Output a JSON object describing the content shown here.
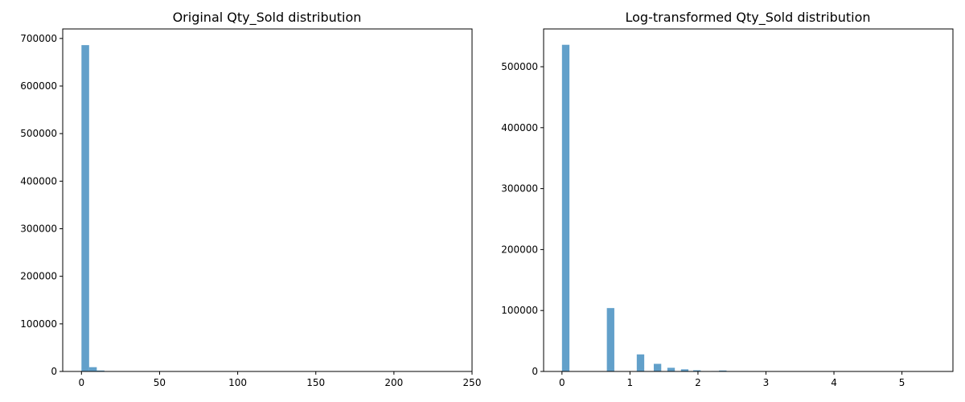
{
  "chart_data": [
    {
      "type": "bar",
      "title": "Original Qty_Sold distribution",
      "xlabel": "",
      "ylabel": "",
      "xlim": [
        -12,
        250
      ],
      "ylim": [
        0,
        720000
      ],
      "grid": false,
      "bar_color": "#1f77b4",
      "bar_opacity": 0.7,
      "xticks": [
        0,
        50,
        100,
        150,
        200,
        250
      ],
      "yticks": [
        0,
        100000,
        200000,
        300000,
        400000,
        500000,
        600000,
        700000
      ],
      "bins": [
        {
          "x0": 0.0,
          "x1": 4.9,
          "value": 686000
        },
        {
          "x0": 4.9,
          "x1": 9.8,
          "value": 9000
        },
        {
          "x0": 9.8,
          "x1": 14.7,
          "value": 2000
        },
        {
          "x0": 14.7,
          "x1": 19.6,
          "value": 700
        },
        {
          "x0": 19.6,
          "x1": 24.5,
          "value": 300
        },
        {
          "x0": 24.5,
          "x1": 29.4,
          "value": 150
        }
      ]
    },
    {
      "type": "bar",
      "title": "Log-transformed Qty_Sold distribution",
      "xlabel": "",
      "ylabel": "",
      "xlim": [
        -0.27,
        5.75
      ],
      "ylim": [
        0,
        562000
      ],
      "grid": false,
      "bar_color": "#1f77b4",
      "bar_opacity": 0.7,
      "xticks": [
        0,
        1,
        2,
        3,
        4,
        5
      ],
      "yticks": [
        0,
        100000,
        200000,
        300000,
        400000,
        500000
      ],
      "bins": [
        {
          "x0": 0.0,
          "x1": 0.11,
          "value": 536000
        },
        {
          "x0": 0.66,
          "x1": 0.77,
          "value": 104000
        },
        {
          "x0": 1.1,
          "x1": 1.21,
          "value": 28000
        },
        {
          "x0": 1.35,
          "x1": 1.46,
          "value": 12500
        },
        {
          "x0": 1.55,
          "x1": 1.66,
          "value": 6000
        },
        {
          "x0": 1.75,
          "x1": 1.86,
          "value": 3500
        },
        {
          "x0": 1.93,
          "x1": 2.04,
          "value": 2000
        },
        {
          "x0": 2.2,
          "x1": 2.31,
          "value": 700
        },
        {
          "x0": 2.31,
          "x1": 2.42,
          "value": 1600
        },
        {
          "x0": 2.53,
          "x1": 2.64,
          "value": 400
        },
        {
          "x0": 2.75,
          "x1": 2.86,
          "value": 250
        },
        {
          "x0": 3.0,
          "x1": 3.11,
          "value": 150
        }
      ]
    }
  ]
}
